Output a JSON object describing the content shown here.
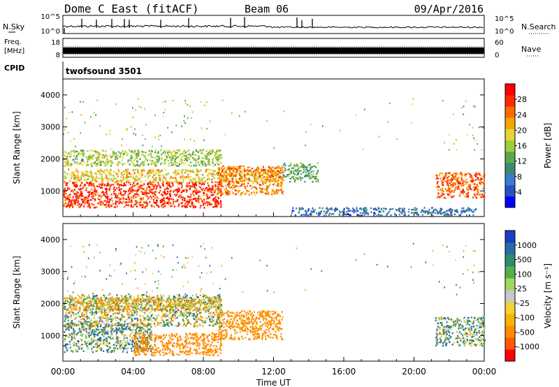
{
  "header": {
    "radar": "Dome C East (fitACF)",
    "beam": "Beam 06",
    "date": "09/Apr/2016"
  },
  "panels": {
    "nsky": {
      "label": "N.Sky",
      "ticks": [
        "10^5",
        "10^0"
      ],
      "right_ticks": [
        "10^5",
        "10^0"
      ],
      "right_label": "N.Search"
    },
    "freq": {
      "label_line1": "Freq.",
      "label_line2": "[MHz]",
      "ticks": [
        "18",
        "8"
      ],
      "right_ticks": [
        "60",
        "0"
      ],
      "right_label": "Nave"
    },
    "cpid": {
      "label": "CPID",
      "value": "twofsound 3501"
    }
  },
  "chart_data": [
    {
      "type": "heatmap",
      "name": "power",
      "ylabel": "Slant Range [km]",
      "xlabel": "",
      "ylim": [
        200,
        4500
      ],
      "yticks": [
        "4000",
        "3000",
        "2000",
        "1000"
      ],
      "colorbar": {
        "label": "Power [dB]",
        "ticks": [
          "28",
          "24",
          "20",
          "16",
          "12",
          "8",
          "4"
        ],
        "range": [
          0,
          30
        ]
      },
      "regions": [
        {
          "t0": 0,
          "t1": 9,
          "r0": 500,
          "r1": 1300,
          "value": 27
        },
        {
          "t0": 0,
          "t1": 12.5,
          "r0": 1300,
          "r1": 1700,
          "value": 19
        },
        {
          "t0": 8.8,
          "t1": 12.5,
          "r0": 900,
          "r1": 1800,
          "value": 23
        },
        {
          "t0": 21.2,
          "t1": 24,
          "r0": 800,
          "r1": 1600,
          "value": 25
        },
        {
          "t0": 12.5,
          "t1": 14.5,
          "r0": 1300,
          "r1": 1900,
          "value": 11
        },
        {
          "t0": 0,
          "t1": 9,
          "r0": 1800,
          "r1": 2300,
          "value": 15
        },
        {
          "t0": 13,
          "t1": 23.5,
          "r0": 250,
          "r1": 500,
          "value": 6
        }
      ]
    },
    {
      "type": "heatmap",
      "name": "velocity",
      "ylabel": "Slant Range [km]",
      "xlabel": "Time UT",
      "ylim": [
        200,
        4500
      ],
      "yticks": [
        "4000",
        "3000",
        "2000",
        "1000"
      ],
      "xticks": [
        "00:00",
        "04:00",
        "08:00",
        "12:00",
        "16:00",
        "20:00",
        "00:00"
      ],
      "colorbar": {
        "label": "Velocity [m s⁻¹]",
        "ticks": [
          "1000",
          "500",
          "100",
          "25",
          "-25",
          "-100",
          "-500",
          "-1000"
        ]
      },
      "regions": [
        {
          "t0": 0,
          "t1": 5,
          "r0": 500,
          "r1": 1400,
          "value": 60
        },
        {
          "t0": 4,
          "t1": 9,
          "r0": 400,
          "r1": 1100,
          "value": -300
        },
        {
          "t0": 8.8,
          "t1": 12.5,
          "r0": 900,
          "r1": 1800,
          "value": -200
        },
        {
          "t0": 0,
          "t1": 9,
          "r0": 1300,
          "r1": 2300,
          "value": 0
        },
        {
          "t0": 21.2,
          "t1": 24,
          "r0": 700,
          "r1": 1600,
          "value": 60
        },
        {
          "t0": 0,
          "t1": 9,
          "r0": 1800,
          "r1": 2200,
          "value": -80
        }
      ]
    }
  ]
}
